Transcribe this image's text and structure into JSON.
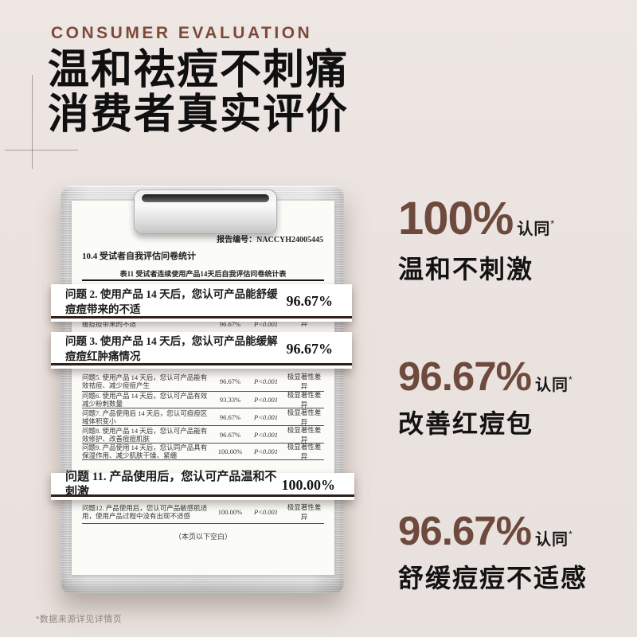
{
  "page": {
    "eyebrow": "CONSUMER EVALUATION",
    "title_line1": "温和祛痘不刺痛",
    "title_line2": "消费者真实评价",
    "footnote": "*数据来源详见详情页"
  },
  "colors": {
    "accent_brown": "#6d4a3d",
    "eyebrow_brown": "#7d4a39",
    "highlight_underline": "#31201a",
    "background": "#ece5e1"
  },
  "document": {
    "report_no": "报告编号：NACCYH24005445",
    "section_title": "10.4 受试者自我评估问卷统计",
    "table_caption": "表11 受试者连续使用产品14天后自我评估问卷统计表",
    "blank_note": "（本页以下空白）",
    "rows": [
      {
        "q": "问题2. 使用产品 14 天后，您认可产品能舒缓痘痘带来的不适",
        "rate": "96.67%",
        "p": "P<0.001",
        "sig": "极显著性差异"
      },
      {
        "q": "问题5. 使用产品 14 天后，您认可产品能有效祛痘、减少痘痘产生",
        "rate": "96.67%",
        "p": "P<0.001",
        "sig": "极显著性差异"
      },
      {
        "q": "问题6. 使用产品 14 天后，您认可产品有效减少粉刺数量",
        "rate": "93.33%",
        "p": "P<0.001",
        "sig": "极显著性差异"
      },
      {
        "q": "问题7. 产品使用后 14 天后，您认可痘痘区域体积变小",
        "rate": "96.67%",
        "p": "P<0.001",
        "sig": "极显著性差异"
      },
      {
        "q": "问题8. 使用产品 14 天后，您认可产品能有效修护、改善痘痘肌肤",
        "rate": "96.67%",
        "p": "P<0.001",
        "sig": "极显著性差异"
      },
      {
        "q": "问题9. 产品使用 14 天后，您认同产品具有保湿作用、减少肌肤干燥、紧绷",
        "rate": "100.00%",
        "p": "P<0.001",
        "sig": "极显著性差异"
      },
      {
        "q": "问题12. 产品使用后，您认可产品敏感肌适用，使用产品过程中没有出现不适感",
        "rate": "100.00%",
        "p": "P<0.001",
        "sig": "极显著性差异"
      }
    ]
  },
  "highlights": [
    {
      "question": "问题 2. 使用产品 14 天后，您认可产品能舒缓痘痘带来的不适",
      "value": "96.67%"
    },
    {
      "question": "问题 3. 使用产品 14 天后，您认可产品能缓解痘痘红肿痛情况",
      "value": "96.67%"
    },
    {
      "question": "问题 11. 产品使用后，您认可产品温和不刺激",
      "value": "100.00%"
    }
  ],
  "callouts": [
    {
      "value": "100%",
      "suffix": "认同",
      "star": "*",
      "label": "温和不刺激"
    },
    {
      "value": "96.67%",
      "suffix": "认同",
      "star": "*",
      "label": "改善红痘包"
    },
    {
      "value": "96.67%",
      "suffix": "认同",
      "star": "*",
      "label": "舒缓痘痘不适感"
    }
  ]
}
